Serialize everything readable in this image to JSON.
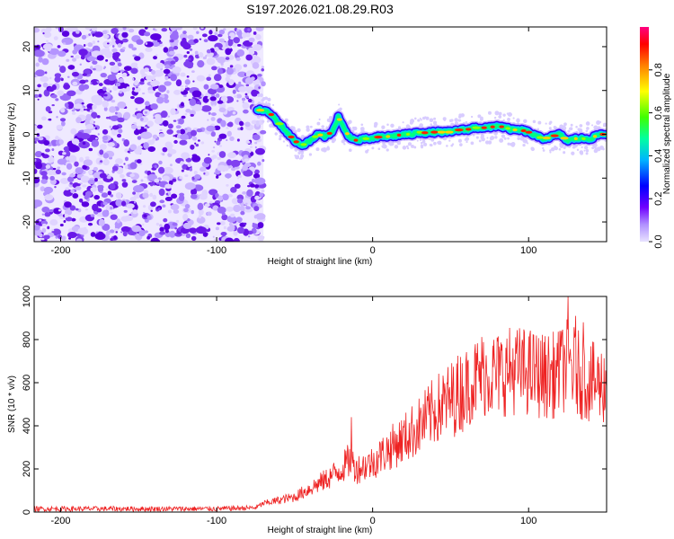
{
  "page": {
    "title": "S197.2026.021.08.29.R03"
  },
  "chart_data": [
    {
      "type": "heatmap",
      "xlabel": "Height of straight line (km)",
      "ylabel": "Frequency (Hz)",
      "xlim": [
        -217,
        150
      ],
      "ylim": [
        -24.5,
        24.5
      ],
      "xticks": [
        -200,
        -100,
        0,
        100
      ],
      "yticks": [
        -20,
        -10,
        0,
        10,
        20
      ],
      "noise_region_x": [
        -217,
        -70
      ],
      "ridge": {
        "x": [
          -74,
          -70,
          -65,
          -60,
          -55,
          -50,
          -45,
          -40,
          -35,
          -30,
          -25,
          -22,
          -18,
          -15,
          -10,
          -5,
          0,
          5,
          10,
          15,
          20,
          25,
          30,
          35,
          40,
          45,
          50,
          55,
          60,
          65,
          70,
          75,
          80,
          85,
          90,
          95,
          100,
          105,
          110,
          115,
          120,
          125,
          130,
          135,
          140,
          145,
          150
        ],
        "freq": [
          5.5,
          5.5,
          4.5,
          2.5,
          0.5,
          -1.5,
          -2.5,
          -1.5,
          0,
          -0.5,
          1,
          4,
          1,
          -0.5,
          -1.5,
          -1,
          -1,
          -0.5,
          -0.5,
          -0.3,
          0,
          0,
          0.5,
          0.3,
          0.5,
          0.5,
          0.5,
          1,
          1,
          1.5,
          1.5,
          1.5,
          2,
          1.5,
          1,
          1,
          0.5,
          -0.5,
          -1,
          -0.5,
          0,
          -1.5,
          -1,
          -1,
          -1,
          0,
          0
        ]
      },
      "colorbar": {
        "label": "Normalized spectral amplitude",
        "ticks": [
          0.0,
          0.2,
          0.4,
          0.6,
          0.8
        ],
        "range": [
          0,
          1
        ],
        "colors": [
          "#dcd3ff",
          "#8000ff",
          "#0000ff",
          "#00b4ff",
          "#00ff80",
          "#80ff00",
          "#ffff00",
          "#ff8000",
          "#ff0000",
          "#ff0080"
        ]
      },
      "grid": false,
      "legend": "none"
    },
    {
      "type": "line",
      "xlabel": "Height of straight line (km)",
      "ylabel": "SNR (10 * v/v)",
      "xlim": [
        -217,
        150
      ],
      "ylim": [
        0,
        1000
      ],
      "xticks": [
        -200,
        -100,
        0,
        100
      ],
      "yticks": [
        0,
        200,
        400,
        600,
        800,
        1000
      ],
      "series": [
        {
          "color": "#ee2222",
          "x": [
            -217,
            -150,
            -100,
            -75,
            -70,
            -60,
            -50,
            -40,
            -30,
            -20,
            -15,
            -10,
            0,
            10,
            20,
            30,
            40,
            50,
            60,
            70,
            80,
            90,
            100,
            110,
            120,
            125,
            130,
            140,
            150
          ],
          "y": [
            15,
            15,
            15,
            20,
            40,
            55,
            70,
            110,
            150,
            200,
            240,
            200,
            230,
            290,
            340,
            400,
            470,
            520,
            580,
            640,
            640,
            660,
            650,
            630,
            640,
            700,
            650,
            600,
            590
          ],
          "spikes": [
            {
              "x": -14,
              "y": 440
            },
            {
              "x": 125,
              "y": 1000
            },
            {
              "x": 130,
              "y": 910
            },
            {
              "x": 120,
              "y": 840
            },
            {
              "x": 135,
              "y": 880
            }
          ]
        }
      ],
      "grid": false,
      "legend": "none"
    }
  ]
}
